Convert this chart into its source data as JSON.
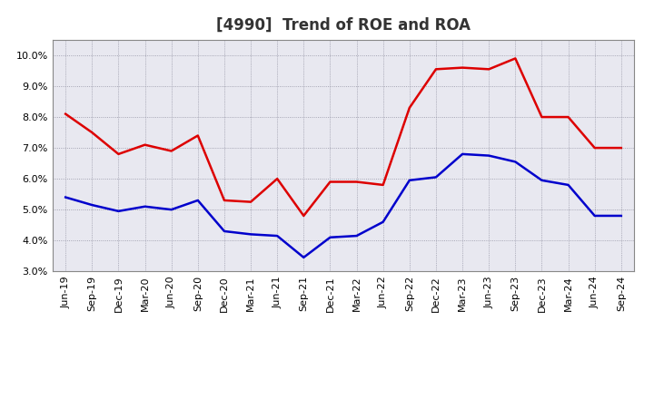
{
  "title": "[4990]  Trend of ROE and ROA",
  "x_labels": [
    "Jun-19",
    "Sep-19",
    "Dec-19",
    "Mar-20",
    "Jun-20",
    "Sep-20",
    "Dec-20",
    "Mar-21",
    "Jun-21",
    "Sep-21",
    "Dec-21",
    "Mar-22",
    "Jun-22",
    "Sep-22",
    "Dec-22",
    "Mar-23",
    "Jun-23",
    "Sep-23",
    "Dec-23",
    "Mar-24",
    "Jun-24",
    "Sep-24"
  ],
  "roe": [
    8.1,
    7.5,
    6.8,
    7.1,
    6.9,
    7.4,
    5.3,
    5.25,
    6.0,
    4.8,
    5.9,
    5.9,
    5.8,
    8.3,
    9.55,
    9.6,
    9.55,
    9.9,
    8.0,
    8.0,
    7.0,
    7.0
  ],
  "roa": [
    5.4,
    5.15,
    4.95,
    5.1,
    5.0,
    5.3,
    4.3,
    4.2,
    4.15,
    3.45,
    4.1,
    4.15,
    4.6,
    5.95,
    6.05,
    6.8,
    6.75,
    6.55,
    5.95,
    5.8,
    4.8,
    4.8
  ],
  "roe_color": "#dd0000",
  "roa_color": "#0000cc",
  "ylim": [
    3.0,
    10.5
  ],
  "yticks": [
    3.0,
    4.0,
    5.0,
    6.0,
    7.0,
    8.0,
    9.0,
    10.0
  ],
  "background_color": "#ffffff",
  "plot_bg_color": "#e8e8f0",
  "grid_color": "#888899",
  "title_fontsize": 12,
  "legend_fontsize": 10,
  "tick_fontsize": 8,
  "line_width": 1.8
}
